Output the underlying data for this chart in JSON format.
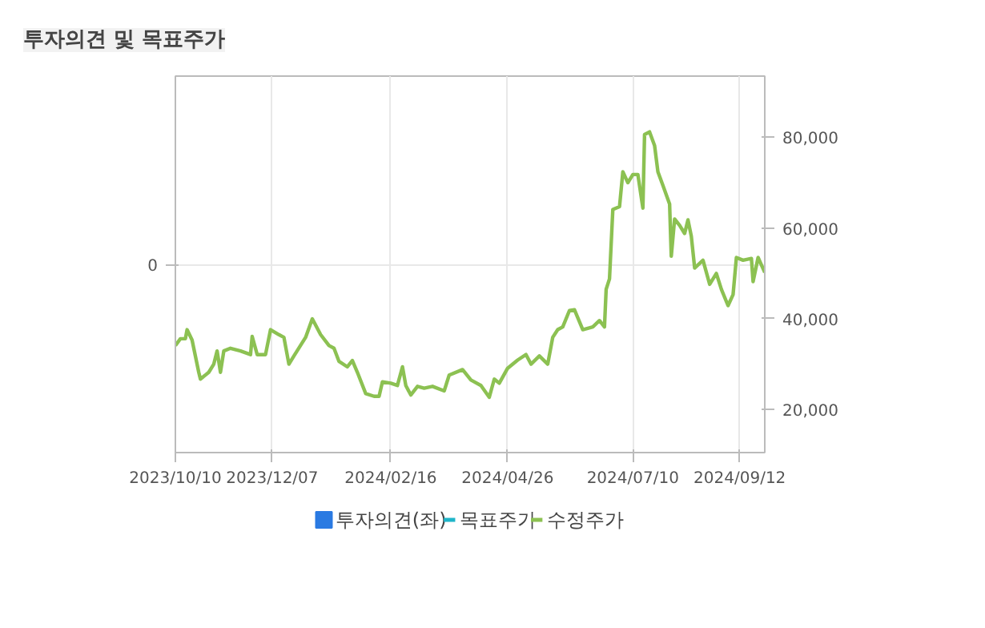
{
  "chart_data": {
    "type": "line",
    "title": "투자의견 및 목표주가",
    "x": [
      "2023-10-10",
      "2023-10-13",
      "2023-10-16",
      "2023-10-17",
      "2023-10-20",
      "2023-10-24",
      "2023-10-25",
      "2023-10-30",
      "2023-11-02",
      "2023-11-04",
      "2023-11-06",
      "2023-11-08",
      "2023-11-12",
      "2023-11-18",
      "2023-11-24",
      "2023-11-25",
      "2023-11-28",
      "2023-12-03",
      "2023-12-06",
      "2023-12-11",
      "2023-12-14",
      "2023-12-17",
      "2023-12-20",
      "2023-12-27",
      "2023-12-31",
      "2024-01-05",
      "2024-01-10",
      "2024-01-13",
      "2024-01-16",
      "2024-01-21",
      "2024-01-24",
      "2024-01-27",
      "2024-02-01",
      "2024-02-06",
      "2024-02-09",
      "2024-02-11",
      "2024-02-16",
      "2024-02-20",
      "2024-02-23",
      "2024-02-25",
      "2024-02-28",
      "2024-03-03",
      "2024-03-07",
      "2024-03-12",
      "2024-03-19",
      "2024-03-22",
      "2024-03-30",
      "2024-04-04",
      "2024-04-10",
      "2024-04-15",
      "2024-04-18",
      "2024-04-21",
      "2024-04-26",
      "2024-05-02",
      "2024-05-07",
      "2024-05-10",
      "2024-05-15",
      "2024-05-20",
      "2024-05-23",
      "2024-05-26",
      "2024-05-29",
      "2024-06-02",
      "2024-06-05",
      "2024-06-10",
      "2024-06-16",
      "2024-06-20",
      "2024-06-23",
      "2024-06-24",
      "2024-06-26",
      "2024-06-28",
      "2024-07-02",
      "2024-07-04",
      "2024-07-07",
      "2024-07-10",
      "2024-07-13",
      "2024-07-16",
      "2024-07-17",
      "2024-07-20",
      "2024-07-23",
      "2024-07-25",
      "2024-07-28",
      "2024-08-01",
      "2024-08-02",
      "2024-08-04",
      "2024-08-07",
      "2024-08-10",
      "2024-08-12",
      "2024-08-14",
      "2024-08-16",
      "2024-08-21",
      "2024-08-25",
      "2024-08-29",
      "2024-09-01",
      "2024-09-05",
      "2024-09-08",
      "2024-09-10",
      "2024-09-14",
      "2024-09-19",
      "2024-09-20",
      "2024-09-23",
      "2024-09-27"
    ],
    "series": [
      {
        "name": "투자의견(좌)",
        "type": "bar",
        "color": "#2a7ae2",
        "values": [
          null,
          null,
          null,
          null,
          null,
          null,
          null,
          null,
          null,
          null,
          null,
          null,
          null,
          null,
          null,
          null,
          null,
          null,
          null,
          null,
          null,
          null,
          null,
          null,
          null,
          null,
          null,
          null,
          null,
          null,
          null,
          null,
          null,
          null,
          null,
          null,
          null,
          null,
          null,
          null,
          null,
          null,
          null,
          null,
          null,
          null,
          null,
          null,
          null,
          null,
          null,
          null,
          null,
          null,
          null,
          null,
          null,
          null,
          null,
          null,
          null,
          null,
          null,
          null,
          null,
          null,
          null,
          null,
          null,
          null,
          null,
          null,
          null,
          null,
          null,
          null,
          null,
          null,
          null,
          null,
          null,
          null,
          null,
          null,
          null,
          null,
          null,
          null,
          null,
          null,
          null,
          null,
          null,
          null,
          null,
          null,
          null,
          null,
          null,
          null,
          null
        ]
      },
      {
        "name": "목표주가",
        "type": "line",
        "color": "#1fb5c9",
        "values": [
          null,
          null,
          null,
          null,
          null,
          null,
          null,
          null,
          null,
          null,
          null,
          null,
          null,
          null,
          null,
          null,
          null,
          null,
          null,
          null,
          null,
          null,
          null,
          null,
          null,
          null,
          null,
          null,
          null,
          null,
          null,
          null,
          null,
          null,
          null,
          null,
          null,
          null,
          null,
          null,
          null,
          null,
          null,
          null,
          null,
          null,
          null,
          null,
          null,
          null,
          null,
          null,
          null,
          null,
          null,
          null,
          null,
          null,
          null,
          null,
          null,
          null,
          null,
          null,
          null,
          null,
          null,
          null,
          null,
          null,
          null,
          null,
          null,
          null,
          null,
          null,
          null,
          null,
          null,
          null,
          null,
          null,
          null,
          null,
          null,
          null,
          null,
          null,
          null,
          null,
          null,
          null,
          null,
          null,
          null,
          null,
          null,
          null,
          null,
          null,
          null
        ]
      },
      {
        "name": "수정주가",
        "color": "#8cc152",
        "axis": "y2",
        "values": [
          34100,
          35600,
          35600,
          37600,
          35300,
          28200,
          26700,
          28200,
          30000,
          32900,
          28200,
          32900,
          33500,
          32900,
          32100,
          36100,
          32100,
          32100,
          37600,
          36500,
          35900,
          30000,
          31800,
          35900,
          40000,
          36500,
          34100,
          33500,
          30600,
          29400,
          30800,
          28200,
          23500,
          22900,
          22900,
          26100,
          25800,
          25300,
          29400,
          25300,
          23200,
          25100,
          24700,
          25100,
          24100,
          27600,
          28800,
          26500,
          25300,
          22700,
          26700,
          25800,
          29100,
          30900,
          32100,
          30000,
          31800,
          30000,
          35900,
          37600,
          38200,
          41800,
          42000,
          37600,
          38200,
          39600,
          38200,
          46500,
          48800,
          64100,
          64700,
          72400,
          70000,
          71800,
          71800,
          64400,
          80600,
          81200,
          78200,
          72400,
          69400,
          65300,
          53800,
          62000,
          60600,
          58800,
          61800,
          58200,
          51200,
          52900,
          47600,
          50000,
          46500,
          42900,
          45300,
          53500,
          52900,
          53300,
          48200,
          53500,
          50200
        ]
      }
    ],
    "xlim": [
      "2023-10-10",
      "2024-09-27"
    ],
    "xticks": [
      {
        "value": "2023-10-10",
        "label": "2023/10/10"
      },
      {
        "value": "2023-12-07",
        "label": "2023/12/07"
      },
      {
        "value": "2024-02-16",
        "label": "2024/02/16"
      },
      {
        "value": "2024-04-26",
        "label": "2024/04/26"
      },
      {
        "value": "2024-07-10",
        "label": "2024/07/10"
      },
      {
        "value": "2024-09-12",
        "label": "2024/09/12"
      }
    ],
    "annotations": [
      "0"
    ],
    "y2lim": [
      10500,
      93500
    ],
    "y2ticks": [
      {
        "value": 20000,
        "label": "20,000"
      },
      {
        "value": 40000,
        "label": "40,000"
      },
      {
        "value": 60000,
        "label": "60,000"
      },
      {
        "value": 80000,
        "label": "80,000"
      }
    ],
    "grid": true,
    "legend": "bottom",
    "marker": "none",
    "line_style": "solid"
  }
}
